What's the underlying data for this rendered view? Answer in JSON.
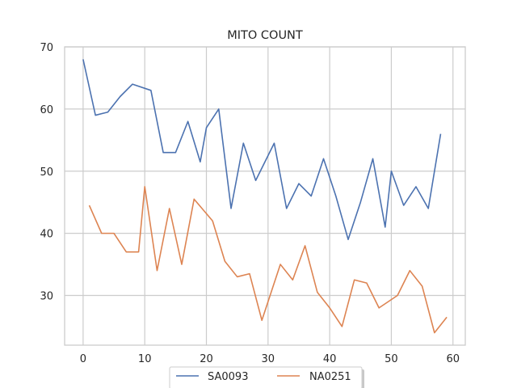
{
  "chart_data": {
    "type": "line",
    "title": "MITO COUNT",
    "xlabel": "",
    "ylabel": "",
    "xlim": [
      -3,
      62
    ],
    "ylim": [
      22,
      70
    ],
    "xticks": [
      0,
      10,
      20,
      30,
      40,
      50,
      60
    ],
    "yticks": [
      30,
      40,
      50,
      60,
      70
    ],
    "grid": true,
    "legend_position": "bottom-center",
    "series": [
      {
        "name": "SA0093",
        "color": "#4c72b0",
        "x": [
          0,
          2,
          4,
          6,
          8,
          11,
          13,
          15,
          17,
          19,
          20,
          22,
          24,
          26,
          28,
          31,
          33,
          35,
          37,
          39,
          41,
          43,
          45,
          47,
          49,
          50,
          52,
          54,
          56,
          58
        ],
        "y": [
          68,
          59,
          59.5,
          62,
          64,
          63,
          53,
          53,
          58,
          51.5,
          57,
          60,
          44,
          54.5,
          48.5,
          54.5,
          44,
          48,
          46,
          52,
          46,
          39,
          45,
          52,
          41,
          50,
          44.5,
          47.5,
          44,
          56
        ]
      },
      {
        "name": "NA0251",
        "color": "#dd8452",
        "x": [
          1,
          3,
          5,
          7,
          9,
          10,
          12,
          14,
          16,
          18,
          21,
          23,
          25,
          27,
          29,
          32,
          34,
          36,
          38,
          40,
          42,
          44,
          46,
          48,
          51,
          53,
          55,
          57,
          59
        ],
        "y": [
          44.5,
          40,
          40,
          37,
          37,
          47.5,
          34,
          44,
          35,
          45.5,
          42,
          35.5,
          33,
          33.5,
          26,
          35,
          32.5,
          38,
          30.5,
          28,
          25,
          32.5,
          32,
          28,
          30,
          34,
          31.5,
          24,
          26.5
        ]
      }
    ]
  }
}
